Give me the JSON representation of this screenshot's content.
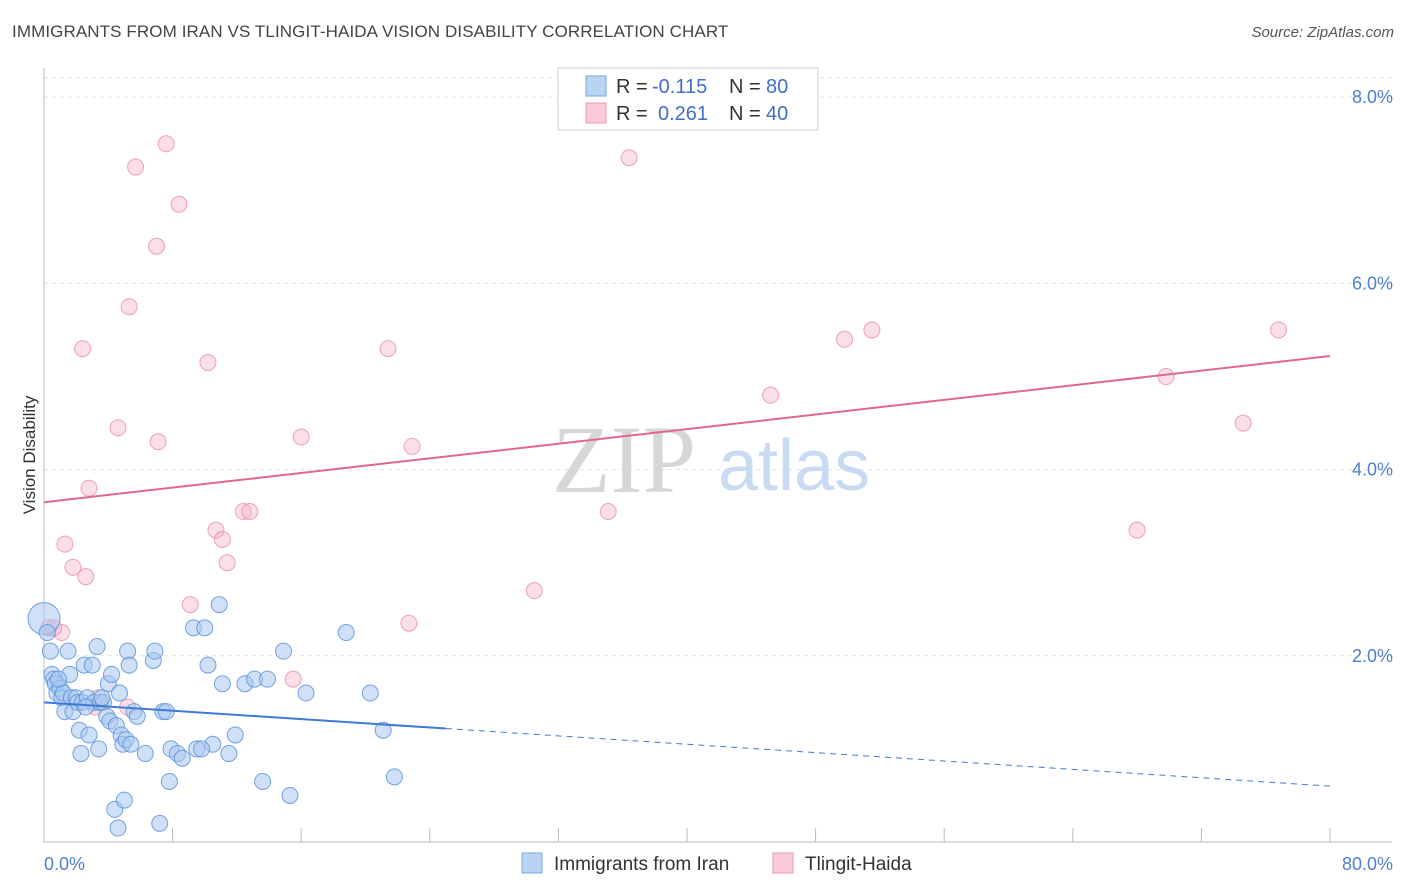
{
  "header": {
    "title": "IMMIGRANTS FROM IRAN VS TLINGIT-HAIDA VISION DISABILITY CORRELATION CHART",
    "source": "Source: ZipAtlas.com"
  },
  "watermark": {
    "zip": "ZIP",
    "atlas": "atlas"
  },
  "legend": {
    "r_label": "R =",
    "n_label": "N =",
    "rows": [
      {
        "r": "-0.115",
        "n": "80",
        "color": "#a9c8f0"
      },
      {
        "r": "0.261",
        "n": "40",
        "color": "#f5b8cb"
      }
    ]
  },
  "bottom_legend": [
    "Immigrants from Iran",
    "Tlingit-Haida"
  ],
  "chart_data": {
    "type": "scatter",
    "title": "IMMIGRANTS FROM IRAN VS TLINGIT-HAIDA VISION DISABILITY CORRELATION CHART",
    "ylabel": "Vision Disability",
    "xlabel": "",
    "xlim": [
      0,
      80
    ],
    "ylim": [
      0,
      8.4
    ],
    "x_tick_labels": [
      "0.0%",
      "80.0%"
    ],
    "y_ticks": [
      2,
      4,
      6,
      8
    ],
    "y_tick_labels": [
      "2.0%",
      "4.0%",
      "6.0%",
      "8.0%"
    ],
    "grid": true,
    "colors": {
      "iran": "#5b93dc",
      "iran_fill": "#a9c8f0",
      "tlingit": "#e87fa0",
      "tlingit_fill": "#f5b8cb",
      "iran_line": "#3f7ad6",
      "tlingit_line": "#e0688f"
    },
    "series": [
      {
        "name": "Immigrants from Iran",
        "points": [
          [
            0.0,
            2.4
          ],
          [
            0.4,
            2.05
          ],
          [
            0.5,
            1.8
          ],
          [
            0.6,
            1.75
          ],
          [
            0.7,
            1.7
          ],
          [
            0.8,
            1.6
          ],
          [
            1.0,
            1.65
          ],
          [
            1.1,
            1.55
          ],
          [
            1.2,
            1.6
          ],
          [
            1.3,
            1.4
          ],
          [
            1.5,
            2.05
          ],
          [
            1.6,
            1.8
          ],
          [
            1.7,
            1.55
          ],
          [
            1.8,
            1.4
          ],
          [
            2.0,
            1.55
          ],
          [
            2.1,
            1.5
          ],
          [
            2.2,
            1.2
          ],
          [
            2.3,
            0.95
          ],
          [
            2.4,
            1.5
          ],
          [
            2.5,
            1.9
          ],
          [
            2.7,
            1.55
          ],
          [
            2.8,
            1.15
          ],
          [
            3.0,
            1.9
          ],
          [
            3.1,
            1.5
          ],
          [
            3.3,
            2.1
          ],
          [
            3.4,
            1.0
          ],
          [
            3.5,
            1.5
          ],
          [
            3.7,
            1.5
          ],
          [
            3.9,
            1.35
          ],
          [
            4.0,
            1.7
          ],
          [
            4.1,
            1.3
          ],
          [
            4.2,
            1.8
          ],
          [
            4.4,
            0.35
          ],
          [
            4.5,
            1.25
          ],
          [
            4.6,
            0.15
          ],
          [
            4.7,
            1.6
          ],
          [
            4.8,
            1.15
          ],
          [
            4.9,
            1.05
          ],
          [
            5.0,
            0.45
          ],
          [
            5.1,
            1.1
          ],
          [
            5.2,
            2.05
          ],
          [
            5.3,
            1.9
          ],
          [
            5.6,
            1.4
          ],
          [
            5.8,
            1.35
          ],
          [
            6.3,
            0.95
          ],
          [
            6.8,
            1.95
          ],
          [
            6.9,
            2.05
          ],
          [
            7.2,
            0.2
          ],
          [
            7.4,
            1.4
          ],
          [
            7.6,
            1.4
          ],
          [
            7.8,
            0.65
          ],
          [
            7.9,
            1.0
          ],
          [
            8.3,
            0.95
          ],
          [
            8.6,
            0.9
          ],
          [
            9.3,
            2.3
          ],
          [
            9.5,
            1.0
          ],
          [
            10.0,
            2.3
          ],
          [
            10.2,
            1.9
          ],
          [
            10.5,
            1.05
          ],
          [
            10.9,
            2.55
          ],
          [
            11.1,
            1.7
          ],
          [
            11.5,
            0.95
          ],
          [
            11.9,
            1.15
          ],
          [
            12.5,
            1.7
          ],
          [
            13.1,
            1.75
          ],
          [
            13.6,
            0.65
          ],
          [
            13.9,
            1.75
          ],
          [
            14.9,
            2.05
          ],
          [
            15.3,
            0.5
          ],
          [
            16.3,
            1.6
          ],
          [
            18.8,
            2.25
          ],
          [
            20.3,
            1.6
          ],
          [
            21.1,
            1.2
          ],
          [
            21.8,
            0.7
          ],
          [
            0.2,
            2.25
          ],
          [
            0.9,
            1.75
          ],
          [
            2.6,
            1.45
          ],
          [
            3.6,
            1.55
          ],
          [
            5.4,
            1.05
          ],
          [
            9.8,
            1.0
          ]
        ]
      },
      {
        "name": "Tlingit-Haida",
        "points": [
          [
            0.3,
            2.3
          ],
          [
            1.1,
            2.25
          ],
          [
            1.3,
            3.2
          ],
          [
            1.8,
            2.95
          ],
          [
            2.4,
            5.3
          ],
          [
            2.6,
            2.85
          ],
          [
            2.8,
            3.8
          ],
          [
            3.2,
            1.45
          ],
          [
            3.4,
            1.55
          ],
          [
            4.6,
            4.45
          ],
          [
            5.2,
            1.45
          ],
          [
            5.3,
            5.75
          ],
          [
            5.7,
            7.25
          ],
          [
            7.0,
            6.4
          ],
          [
            7.1,
            4.3
          ],
          [
            7.6,
            7.5
          ],
          [
            8.4,
            6.85
          ],
          [
            9.1,
            2.55
          ],
          [
            10.2,
            5.15
          ],
          [
            10.7,
            3.35
          ],
          [
            11.1,
            3.25
          ],
          [
            11.4,
            3.0
          ],
          [
            12.4,
            3.55
          ],
          [
            12.8,
            3.55
          ],
          [
            15.5,
            1.75
          ],
          [
            16.0,
            4.35
          ],
          [
            21.4,
            5.3
          ],
          [
            22.7,
            2.35
          ],
          [
            22.9,
            4.25
          ],
          [
            30.5,
            2.7
          ],
          [
            35.1,
            3.55
          ],
          [
            36.4,
            7.35
          ],
          [
            45.2,
            4.8
          ],
          [
            49.8,
            5.4
          ],
          [
            51.5,
            5.5
          ],
          [
            68.0,
            3.35
          ],
          [
            69.8,
            5.0
          ],
          [
            74.6,
            4.5
          ],
          [
            76.8,
            5.5
          ],
          [
            0.6,
            2.3
          ]
        ]
      }
    ],
    "trend_lines": [
      {
        "series": "Immigrants from Iran",
        "solid_from": 0,
        "solid_to": 25,
        "dashed_to": 80,
        "y_at_0": 1.5,
        "y_at_80": 0.6
      },
      {
        "series": "Tlingit-Haida",
        "from": 0,
        "to": 80,
        "y_at_0": 3.65,
        "y_at_80": 5.22
      }
    ]
  }
}
